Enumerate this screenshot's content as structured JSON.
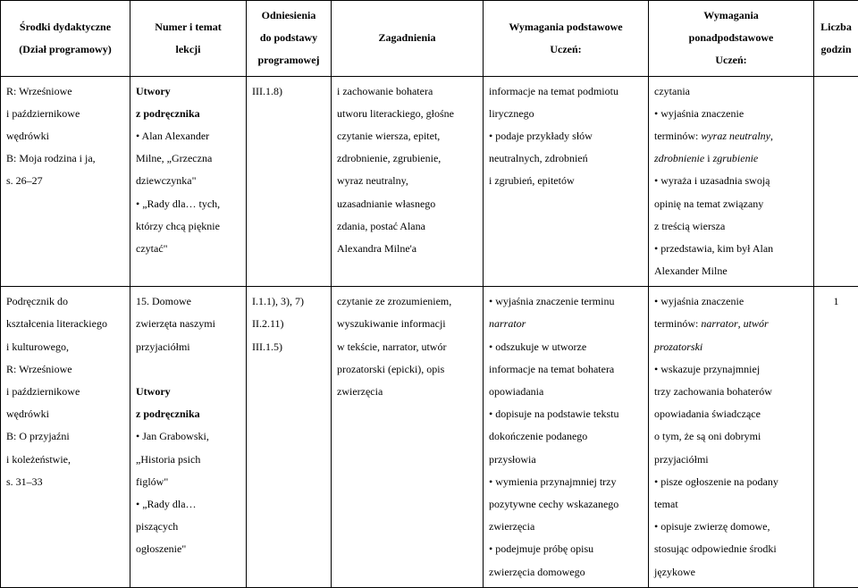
{
  "header": {
    "col1": "Środki dydaktyczne\n(Dział programowy)",
    "col2": "Numer i temat\nlekcji",
    "col3": "Odniesienia\ndo podstawy\nprogramowej",
    "col4": "Zagadnienia",
    "col5": "Wymagania podstawowe\nUczeń:",
    "col6": "Wymagania\nponadpodstawowe\nUczeń:",
    "col7": "Liczba\ngodzin"
  },
  "row1": {
    "col1": "R: Wrześniowe\ni październikowe\nwędrówki\nB: Moja rodzina i ja,\ns. 26–27",
    "col2": "Utwory\nz podręcznika\n• Alan Alexander\nMilne, „Grzeczna\ndziewczynka\"\n• „Rady dla… tych,\nktórzy chcą pięknie\nczytać\"",
    "col3": "III.1.8)",
    "col4": "i zachowanie bohatera\nutworu literackiego, głośne\nczytanie wiersza, epitet,\nzdrobnienie, zgrubienie,\nwyraz neutralny,\nuzasadnianie własnego\nzdania, postać Alana\nAlexandra Milne'a",
    "col5": "informacje na temat podmiotu\nlirycznego\n• podaje przykłady słów\nneutralnych, zdrobnień\ni zgrubień, epitetów",
    "col6": "czytania\n• wyjaśnia znaczenie\nterminów: wyraz neutralny,\nzdrobnienie i zgrubienie\n• wyraża i uzasadnia swoją\nopinię na temat związany\nz treścią wiersza\n• przedstawia, kim był Alan\nAlexander Milne",
    "col7": ""
  },
  "row2": {
    "col1": "Podręcznik do\nkształcenia literackiego\ni kulturowego,\nR: Wrześniowe\ni październikowe\nwędrówki\nB: O przyjaźni\ni koleżeństwie,\ns. 31–33",
    "col2": "15. Domowe\nzwierzęta naszymi\nprzyjaciółmi\n\nUtwory\nz podręcznika\n• Jan Grabowski,\n„Historia psich\nfiglów\"\n• „Rady dla…\npiszących\nogłoszenie\"",
    "col3": "I.1.1), 3), 7)\nII.2.11)\nIII.1.5)",
    "col4": "czytanie ze zrozumieniem,\nwyszukiwanie informacji\nw tekście, narrator, utwór\nprozatorski (epicki), opis\nzwierzęcia",
    "col5": "• wyjaśnia znaczenie terminu\nnarrator\n• odszukuje w utworze\ninformacje na temat bohatera\nopowiadania\n• dopisuje na podstawie tekstu\ndokończenie podanego\nprzysłowia\n• wymienia przynajmniej trzy\npozytywne cechy wskazanego\nzwierzęcia\n• podejmuje próbę opisu\nzwierzęcia domowego",
    "col6": "• wyjaśnia znaczenie\nterminów: narrator, utwór\nprozatorski\n• wskazuje przynajmniej\ntrzy zachowania bohaterów\nopowiadania świadczące\no tym, że są oni dobrymi\nprzyjaciółmi\n• pisze ogłoszenie na podany\ntemat\n• opisuje zwierzę domowe,\nstosując odpowiednie środki\njęzykowe",
    "col7": "1"
  },
  "style": {
    "italic_terms_r1c6": [
      "wyraz neutralny",
      "zdrobnienie",
      "zgrubienie"
    ],
    "italic_terms_r2c5": [
      "narrator"
    ],
    "italic_terms_r2c6": [
      "narrator",
      "utwór",
      "prozatorski"
    ],
    "bold_terms_r2c2": [
      "Utwory",
      "z podręcznika"
    ],
    "bold_terms_r1c2": [
      "Utwory",
      "z podręcznika"
    ],
    "font_family": "Times New Roman",
    "font_size_pt": 12,
    "border_color": "#000000",
    "background_color": "#ffffff",
    "line_height": 2.1
  }
}
